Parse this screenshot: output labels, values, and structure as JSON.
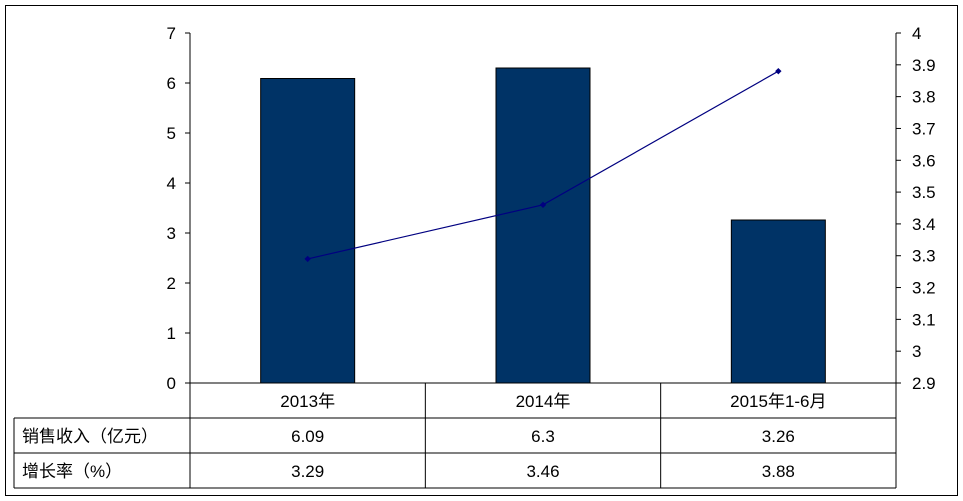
{
  "chart_data": {
    "type": "bar",
    "categories": [
      "2013年",
      "2014年",
      "2015年1-6月"
    ],
    "series": [
      {
        "name": "销售收入（亿元）",
        "type": "bar",
        "axis": "left",
        "values": [
          6.09,
          6.3,
          3.26
        ],
        "color": "#003366"
      },
      {
        "name": "增长率（%）",
        "type": "line",
        "axis": "right",
        "values": [
          3.29,
          3.46,
          3.88
        ],
        "color": "#000080"
      }
    ],
    "value_labels": {
      "sales": [
        "6.09",
        "6.3",
        "3.26"
      ],
      "growth": [
        "3.29",
        "3.46",
        "3.88"
      ]
    },
    "left_axis": {
      "ylim": [
        0,
        7
      ],
      "ticks": [
        "0",
        "1",
        "2",
        "3",
        "4",
        "5",
        "6",
        "7"
      ]
    },
    "right_axis": {
      "ylim": [
        2.9,
        4
      ],
      "ticks": [
        "2.9",
        "3",
        "3.1",
        "3.2",
        "3.3",
        "3.4",
        "3.5",
        "3.6",
        "3.7",
        "3.8",
        "3.9",
        "4"
      ]
    },
    "grid": false,
    "data_table": true,
    "title": "",
    "xlabel": "",
    "ylabel": ""
  }
}
